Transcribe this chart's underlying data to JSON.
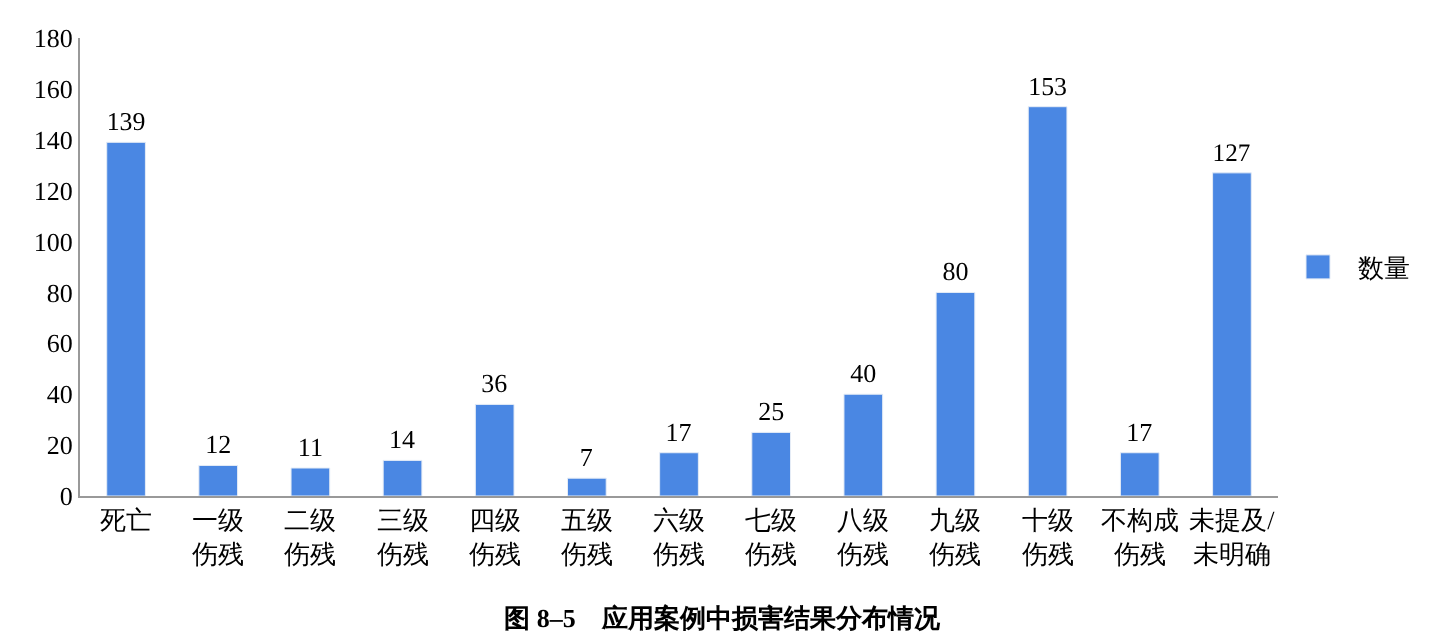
{
  "chart_data": {
    "type": "bar",
    "title": "图 8–5　应用案例中损害结果分布情况",
    "categories": [
      "死亡",
      "一级伤残",
      "二级伤残",
      "三级伤残",
      "四级伤残",
      "五级伤残",
      "六级伤残",
      "七级伤残",
      "八级伤残",
      "九级伤残",
      "十级伤残",
      "不构成伤残",
      "未提及/未明确"
    ],
    "series": [
      {
        "name": "数量",
        "color": "#4a87e3",
        "values": [
          139,
          12,
          11,
          14,
          36,
          7,
          17,
          25,
          40,
          80,
          153,
          17,
          127
        ]
      }
    ],
    "ylim": [
      0,
      180
    ],
    "yticks": [
      0,
      20,
      40,
      60,
      80,
      100,
      120,
      140,
      160,
      180
    ],
    "data_labels": true,
    "legend": "right"
  }
}
